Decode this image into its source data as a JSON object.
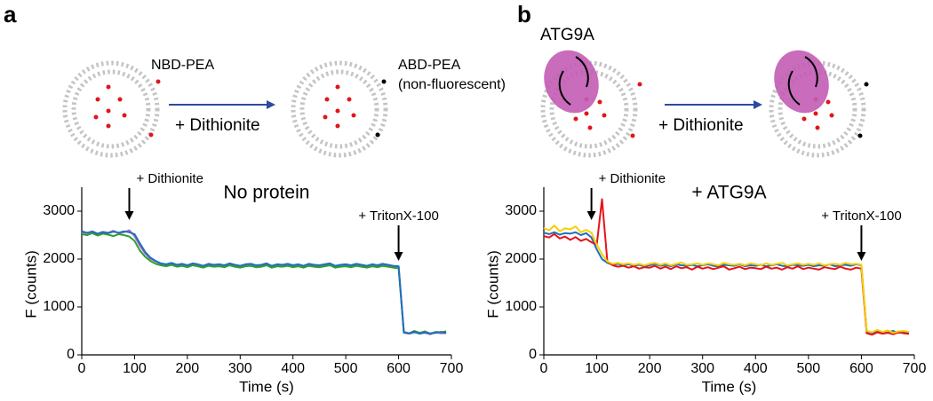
{
  "panel_labels": [
    "a",
    "b"
  ],
  "schematics": [
    {
      "labels": [
        "NBD-PEA",
        "+ Dithionite",
        "ABD-PEA",
        "(non-fluorescent)"
      ]
    },
    {
      "labels": [
        "ATG9A",
        "+ Dithionite"
      ]
    }
  ],
  "chart_data": [
    {
      "type": "line",
      "title": "No protein",
      "xlabel": "Time (s)",
      "ylabel": "F (counts)",
      "xlim": [
        0,
        700
      ],
      "ylim": [
        0,
        3500
      ],
      "xticks": [
        0,
        100,
        200,
        300,
        400,
        500,
        600,
        700
      ],
      "yticks": [
        0,
        1000,
        2000,
        3000
      ],
      "annotations": [
        {
          "text": "+ Dithionite",
          "x": 90
        },
        {
          "text": "+ TritonX-100",
          "x": 600
        }
      ],
      "x": [
        0,
        10,
        20,
        30,
        40,
        50,
        60,
        70,
        80,
        90,
        100,
        110,
        120,
        130,
        140,
        150,
        160,
        170,
        180,
        190,
        200,
        210,
        220,
        230,
        240,
        250,
        260,
        270,
        280,
        290,
        300,
        310,
        320,
        330,
        340,
        350,
        360,
        370,
        380,
        390,
        400,
        410,
        420,
        430,
        440,
        450,
        460,
        470,
        480,
        490,
        500,
        510,
        520,
        530,
        540,
        550,
        560,
        570,
        580,
        590,
        600,
        610,
        620,
        630,
        640,
        650,
        660,
        670,
        680,
        690
      ],
      "series": [
        {
          "color": "#b060c8",
          "values": [
            2560,
            2540,
            2580,
            2530,
            2570,
            2550,
            2590,
            2540,
            2560,
            2600,
            2480,
            2280,
            2120,
            2010,
            1950,
            1900,
            1880,
            1910,
            1870,
            1890,
            1860,
            1900,
            1880,
            1850,
            1890,
            1870,
            1880,
            1860,
            1900,
            1870,
            1850,
            1880,
            1890,
            1860,
            1870,
            1900,
            1850,
            1880,
            1870,
            1890,
            1860,
            1880,
            1850,
            1890,
            1870,
            1860,
            1880,
            1900,
            1850,
            1870,
            1880,
            1860,
            1890,
            1870,
            1850,
            1880,
            1860,
            1890,
            1870,
            1850,
            1840,
            460,
            440,
            470,
            450,
            460,
            430,
            470,
            450,
            460
          ]
        },
        {
          "color": "#2ca02c",
          "values": [
            2520,
            2500,
            2540,
            2490,
            2530,
            2510,
            2480,
            2520,
            2500,
            2470,
            2380,
            2180,
            2050,
            1960,
            1900,
            1870,
            1850,
            1880,
            1840,
            1860,
            1830,
            1870,
            1850,
            1820,
            1860,
            1840,
            1850,
            1830,
            1870,
            1840,
            1820,
            1850,
            1860,
            1830,
            1840,
            1870,
            1820,
            1850,
            1840,
            1860,
            1830,
            1850,
            1820,
            1860,
            1840,
            1830,
            1850,
            1870,
            1820,
            1840,
            1850,
            1830,
            1860,
            1840,
            1820,
            1850,
            1830,
            1860,
            1840,
            1820,
            1810,
            480,
            450,
            500,
            460,
            490,
            440,
            480,
            470,
            490
          ]
        },
        {
          "color": "#1f6fc0",
          "values": [
            2580,
            2550,
            2570,
            2530,
            2560,
            2540,
            2570,
            2550,
            2580,
            2560,
            2520,
            2330,
            2150,
            2030,
            1960,
            1910,
            1890,
            1920,
            1880,
            1900,
            1870,
            1910,
            1890,
            1860,
            1900,
            1880,
            1890,
            1870,
            1910,
            1880,
            1860,
            1890,
            1900,
            1870,
            1880,
            1910,
            1860,
            1890,
            1880,
            1900,
            1870,
            1890,
            1860,
            1900,
            1880,
            1870,
            1890,
            1910,
            1860,
            1880,
            1890,
            1870,
            1900,
            1880,
            1860,
            1890,
            1870,
            1900,
            1880,
            1860,
            1850,
            470,
            450,
            480,
            440,
            470,
            450,
            460,
            480,
            450
          ]
        }
      ]
    },
    {
      "type": "line",
      "title": "+ ATG9A",
      "xlabel": "Time (s)",
      "ylabel": "F (counts)",
      "xlim": [
        0,
        700
      ],
      "ylim": [
        0,
        3500
      ],
      "xticks": [
        0,
        100,
        200,
        300,
        400,
        500,
        600,
        700
      ],
      "yticks": [
        0,
        1000,
        2000,
        3000
      ],
      "annotations": [
        {
          "text": "+ Dithionite",
          "x": 90
        },
        {
          "text": "+ TritonX-100",
          "x": 600
        }
      ],
      "x": [
        0,
        10,
        20,
        30,
        40,
        50,
        60,
        70,
        80,
        90,
        100,
        110,
        120,
        130,
        140,
        150,
        160,
        170,
        180,
        190,
        200,
        210,
        220,
        230,
        240,
        250,
        260,
        270,
        280,
        290,
        300,
        310,
        320,
        330,
        340,
        350,
        360,
        370,
        380,
        390,
        400,
        410,
        420,
        430,
        440,
        450,
        460,
        470,
        480,
        490,
        500,
        510,
        520,
        530,
        540,
        550,
        560,
        570,
        580,
        590,
        600,
        610,
        620,
        630,
        640,
        650,
        660,
        670,
        680,
        690
      ],
      "series": [
        {
          "color": "#1f6fc0",
          "values": [
            2550,
            2520,
            2560,
            2510,
            2540,
            2530,
            2560,
            2500,
            2540,
            2450,
            2200,
            2000,
            1920,
            1880,
            1900,
            1870,
            1890,
            1860,
            1880,
            1850,
            1870,
            1900,
            1860,
            1880,
            1850,
            1890,
            1870,
            1860,
            1880,
            1850,
            1870,
            1890,
            1860,
            1850,
            1880,
            1870,
            1860,
            1890,
            1850,
            1870,
            1860,
            1880,
            1850,
            1870,
            1890,
            1860,
            1850,
            1880,
            1870,
            1860,
            1880,
            1850,
            1870,
            1860,
            1890,
            1850,
            1870,
            1880,
            1860,
            1890,
            1870,
            480,
            460,
            490,
            450,
            470,
            500,
            460,
            480,
            470
          ]
        },
        {
          "color": "#e8121a",
          "values": [
            2480,
            2450,
            2520,
            2430,
            2470,
            2400,
            2460,
            2380,
            2420,
            2350,
            2300,
            3250,
            1950,
            1870,
            1840,
            1860,
            1820,
            1850,
            1800,
            1830,
            1820,
            1860,
            1800,
            1840,
            1790,
            1850,
            1810,
            1830,
            1780,
            1840,
            1800,
            1830,
            1790,
            1820,
            1850,
            1780,
            1810,
            1840,
            1790,
            1820,
            1810,
            1790,
            1840,
            1800,
            1820,
            1780,
            1830,
            1800,
            1850,
            1790,
            1820,
            1800,
            1780,
            1830,
            1810,
            1790,
            1840,
            1800,
            1780,
            1820,
            1800,
            450,
            420,
            470,
            440,
            460,
            430,
            470,
            450,
            440
          ]
        },
        {
          "color": "#f5d000",
          "values": [
            2650,
            2600,
            2700,
            2580,
            2640,
            2620,
            2680,
            2560,
            2610,
            2550,
            2300,
            2100,
            1950,
            1900,
            1920,
            1890,
            1910,
            1880,
            1900,
            1870,
            1900,
            1920,
            1880,
            1910,
            1870,
            1900,
            1930,
            1880,
            1890,
            1910,
            1880,
            1910,
            1890,
            1870,
            1920,
            1890,
            1880,
            1900,
            1870,
            1910,
            1890,
            1870,
            1910,
            1880,
            1900,
            1920,
            1870,
            1890,
            1910,
            1880,
            1900,
            1880,
            1910,
            1870,
            1890,
            1900,
            1880,
            1920,
            1890,
            1900,
            1880,
            500,
            470,
            520,
            480,
            510,
            460,
            490,
            500,
            480
          ]
        }
      ]
    }
  ]
}
